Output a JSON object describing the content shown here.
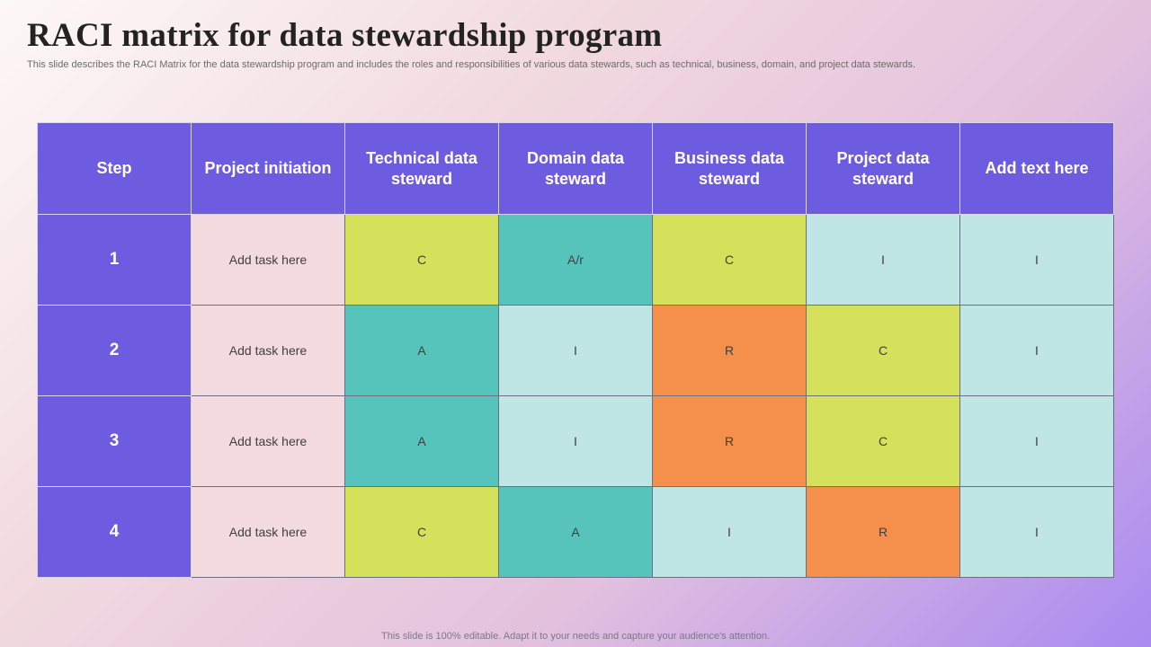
{
  "title": "RACI matrix for data stewardship program",
  "subtitle": "This slide describes the RACI Matrix for the data stewardship program and includes the roles and responsibilities of various data stewards, such as technical, business, domain, and project data stewards.",
  "table": {
    "headers": [
      "Step",
      "Project initiation",
      "Technical data steward",
      "Domain data steward",
      "Business data steward",
      "Project data steward",
      "Add text here"
    ],
    "rows": [
      {
        "step": "1",
        "task": "Add task here",
        "cells": [
          "C",
          "A/r",
          "C",
          "I",
          "I"
        ],
        "types": [
          "C",
          "A",
          "C",
          "I",
          "I"
        ]
      },
      {
        "step": "2",
        "task": "Add task here",
        "cells": [
          "A",
          "I",
          "R",
          "C",
          "I"
        ],
        "types": [
          "A",
          "I",
          "R",
          "C",
          "I"
        ]
      },
      {
        "step": "3",
        "task": "Add task here",
        "cells": [
          "A",
          "I",
          "R",
          "C",
          "I"
        ],
        "types": [
          "A",
          "I",
          "R",
          "C",
          "I"
        ]
      },
      {
        "step": "4",
        "task": "Add task here",
        "cells": [
          "C",
          "A",
          "I",
          "R",
          "I"
        ],
        "types": [
          "C",
          "A",
          "I",
          "R",
          "I"
        ]
      }
    ]
  },
  "footer": "This slide is 100% editable. Adapt it to your needs and capture your audience's attention."
}
